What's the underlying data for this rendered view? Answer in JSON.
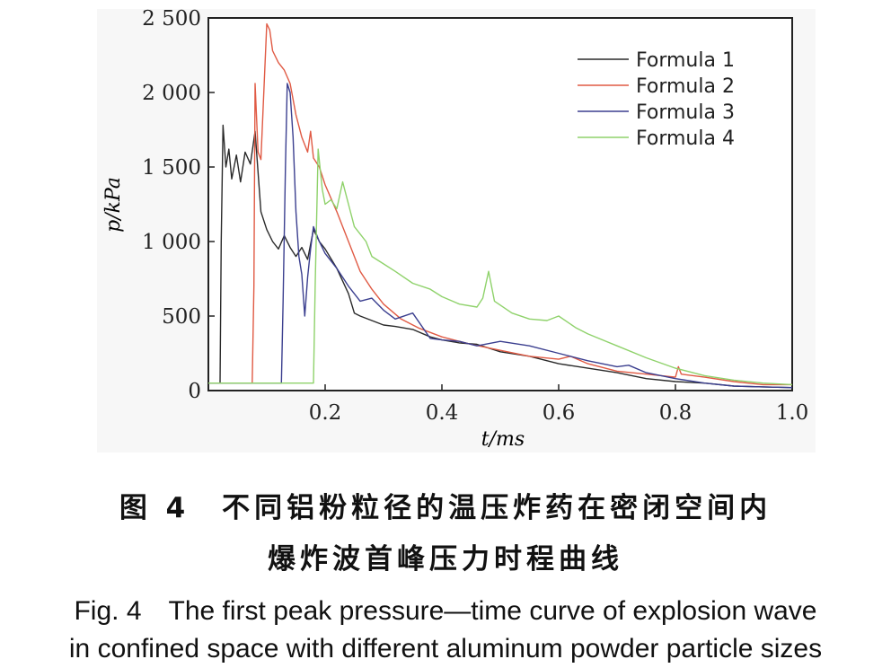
{
  "chart_data": {
    "type": "line",
    "title": "",
    "xlabel": "t/ms",
    "ylabel": "p/kPa",
    "xlim": [
      0,
      1.0
    ],
    "ylim": [
      0,
      2500
    ],
    "x_ticks": [
      "0.2",
      "0.4",
      "0.6",
      "0.8",
      "1.0"
    ],
    "x_tick_values": [
      0.2,
      0.4,
      0.6,
      0.8,
      1.0
    ],
    "y_ticks": [
      "0",
      "500",
      "1 000",
      "1 500",
      "2 000",
      "2 500"
    ],
    "y_tick_values": [
      0,
      500,
      1000,
      1500,
      2000,
      2500
    ],
    "grid": false,
    "legend_position": "top-right",
    "series": [
      {
        "name": "Formula 1",
        "color": "#2a2a2a",
        "points": [
          [
            0.0,
            50
          ],
          [
            0.02,
            50
          ],
          [
            0.022,
            1000
          ],
          [
            0.025,
            1780
          ],
          [
            0.03,
            1500
          ],
          [
            0.035,
            1620
          ],
          [
            0.04,
            1420
          ],
          [
            0.048,
            1580
          ],
          [
            0.055,
            1400
          ],
          [
            0.063,
            1600
          ],
          [
            0.072,
            1520
          ],
          [
            0.08,
            1740
          ],
          [
            0.09,
            1200
          ],
          [
            0.1,
            1080
          ],
          [
            0.11,
            1000
          ],
          [
            0.12,
            950
          ],
          [
            0.13,
            1040
          ],
          [
            0.14,
            960
          ],
          [
            0.15,
            900
          ],
          [
            0.16,
            960
          ],
          [
            0.17,
            880
          ],
          [
            0.18,
            1080
          ],
          [
            0.19,
            1000
          ],
          [
            0.2,
            950
          ],
          [
            0.22,
            820
          ],
          [
            0.24,
            650
          ],
          [
            0.25,
            520
          ],
          [
            0.26,
            500
          ],
          [
            0.28,
            470
          ],
          [
            0.3,
            440
          ],
          [
            0.32,
            430
          ],
          [
            0.35,
            410
          ],
          [
            0.38,
            360
          ],
          [
            0.4,
            340
          ],
          [
            0.43,
            320
          ],
          [
            0.46,
            310
          ],
          [
            0.5,
            260
          ],
          [
            0.55,
            230
          ],
          [
            0.6,
            180
          ],
          [
            0.65,
            150
          ],
          [
            0.7,
            120
          ],
          [
            0.75,
            80
          ],
          [
            0.8,
            60
          ],
          [
            0.85,
            50
          ],
          [
            0.9,
            30
          ],
          [
            0.95,
            25
          ],
          [
            1.0,
            20
          ]
        ]
      },
      {
        "name": "Formula 2",
        "color": "#e05a44",
        "points": [
          [
            0.0,
            50
          ],
          [
            0.075,
            50
          ],
          [
            0.078,
            700
          ],
          [
            0.08,
            2060
          ],
          [
            0.085,
            1600
          ],
          [
            0.09,
            1550
          ],
          [
            0.1,
            2460
          ],
          [
            0.105,
            2420
          ],
          [
            0.11,
            2280
          ],
          [
            0.12,
            2200
          ],
          [
            0.13,
            2150
          ],
          [
            0.14,
            2060
          ],
          [
            0.15,
            1850
          ],
          [
            0.16,
            1700
          ],
          [
            0.17,
            1600
          ],
          [
            0.175,
            1740
          ],
          [
            0.18,
            1560
          ],
          [
            0.19,
            1500
          ],
          [
            0.2,
            1380
          ],
          [
            0.22,
            1200
          ],
          [
            0.24,
            1000
          ],
          [
            0.26,
            800
          ],
          [
            0.28,
            680
          ],
          [
            0.3,
            580
          ],
          [
            0.33,
            480
          ],
          [
            0.36,
            420
          ],
          [
            0.4,
            360
          ],
          [
            0.45,
            310
          ],
          [
            0.5,
            270
          ],
          [
            0.55,
            230
          ],
          [
            0.6,
            210
          ],
          [
            0.62,
            230
          ],
          [
            0.65,
            180
          ],
          [
            0.7,
            130
          ],
          [
            0.75,
            110
          ],
          [
            0.8,
            90
          ],
          [
            0.805,
            160
          ],
          [
            0.81,
            110
          ],
          [
            0.85,
            90
          ],
          [
            0.9,
            60
          ],
          [
            0.95,
            40
          ],
          [
            1.0,
            40
          ]
        ]
      },
      {
        "name": "Formula 3",
        "color": "#3b3f8f",
        "points": [
          [
            0.0,
            50
          ],
          [
            0.125,
            50
          ],
          [
            0.128,
            600
          ],
          [
            0.132,
            1500
          ],
          [
            0.135,
            2060
          ],
          [
            0.14,
            2000
          ],
          [
            0.145,
            1700
          ],
          [
            0.15,
            1200
          ],
          [
            0.155,
            900
          ],
          [
            0.16,
            780
          ],
          [
            0.165,
            500
          ],
          [
            0.17,
            760
          ],
          [
            0.175,
            950
          ],
          [
            0.18,
            1100
          ],
          [
            0.19,
            1000
          ],
          [
            0.2,
            920
          ],
          [
            0.22,
            820
          ],
          [
            0.24,
            700
          ],
          [
            0.26,
            600
          ],
          [
            0.28,
            620
          ],
          [
            0.3,
            540
          ],
          [
            0.32,
            480
          ],
          [
            0.35,
            520
          ],
          [
            0.38,
            350
          ],
          [
            0.4,
            340
          ],
          [
            0.43,
            330
          ],
          [
            0.46,
            300
          ],
          [
            0.5,
            330
          ],
          [
            0.55,
            300
          ],
          [
            0.6,
            250
          ],
          [
            0.65,
            200
          ],
          [
            0.7,
            160
          ],
          [
            0.72,
            170
          ],
          [
            0.75,
            120
          ],
          [
            0.8,
            80
          ],
          [
            0.85,
            50
          ],
          [
            0.9,
            30
          ],
          [
            0.95,
            25
          ],
          [
            1.0,
            20
          ]
        ]
      },
      {
        "name": "Formula 4",
        "color": "#8fd26b",
        "points": [
          [
            0.0,
            50
          ],
          [
            0.18,
            50
          ],
          [
            0.183,
            700
          ],
          [
            0.188,
            1620
          ],
          [
            0.195,
            1350
          ],
          [
            0.2,
            1250
          ],
          [
            0.21,
            1280
          ],
          [
            0.22,
            1220
          ],
          [
            0.23,
            1400
          ],
          [
            0.24,
            1250
          ],
          [
            0.25,
            1100
          ],
          [
            0.26,
            1050
          ],
          [
            0.27,
            1000
          ],
          [
            0.28,
            900
          ],
          [
            0.3,
            850
          ],
          [
            0.32,
            800
          ],
          [
            0.35,
            720
          ],
          [
            0.38,
            680
          ],
          [
            0.4,
            630
          ],
          [
            0.43,
            580
          ],
          [
            0.46,
            560
          ],
          [
            0.47,
            620
          ],
          [
            0.48,
            800
          ],
          [
            0.49,
            600
          ],
          [
            0.52,
            520
          ],
          [
            0.55,
            480
          ],
          [
            0.58,
            470
          ],
          [
            0.6,
            500
          ],
          [
            0.63,
            420
          ],
          [
            0.65,
            380
          ],
          [
            0.7,
            300
          ],
          [
            0.75,
            220
          ],
          [
            0.8,
            150
          ],
          [
            0.85,
            100
          ],
          [
            0.9,
            70
          ],
          [
            0.95,
            50
          ],
          [
            1.0,
            40
          ]
        ]
      }
    ]
  },
  "caption": {
    "cn_line1": "图 4　不同铝粉粒径的温压炸药在密闭空间内",
    "cn_line2": "爆炸波首峰压力时程曲线",
    "en_line1": "Fig. 4　The first peak pressure—time curve of explosion wave",
    "en_line2": "in confined space with different aluminum powder particle sizes"
  }
}
